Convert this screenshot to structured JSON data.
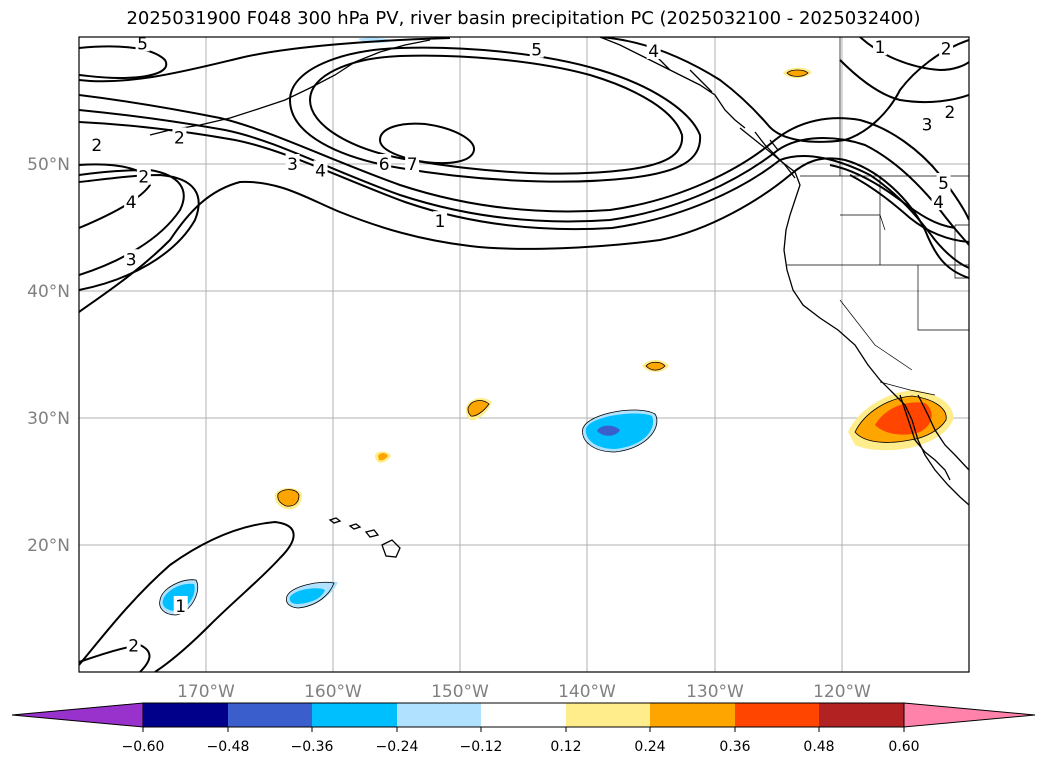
{
  "title": "2025031900 F048 300 hPa PV, river basin precipitation PC (2025032100 - 2025032400)",
  "map": {
    "lon_range": [
      -180,
      -110
    ],
    "lat_range": [
      10,
      60
    ],
    "lon_ticks": [
      {
        "lon": -170,
        "label": "170°W"
      },
      {
        "lon": -160,
        "label": "160°W"
      },
      {
        "lon": -150,
        "label": "150°W"
      },
      {
        "lon": -140,
        "label": "140°W"
      },
      {
        "lon": -130,
        "label": "130°W"
      },
      {
        "lon": -120,
        "label": "120°W"
      }
    ],
    "lat_ticks": [
      {
        "lat": 20,
        "label": "20°N"
      },
      {
        "lat": 30,
        "label": "30°N"
      },
      {
        "lat": 40,
        "label": "40°N"
      },
      {
        "lat": 50,
        "label": "50°N"
      }
    ],
    "grid": true,
    "contour_labels": [
      {
        "text": "5",
        "lon": -175,
        "lat": 59.5
      },
      {
        "text": "5",
        "lon": -144,
        "lat": 59.0
      },
      {
        "text": "4",
        "lon": -134.8,
        "lat": 58.9
      },
      {
        "text": "1",
        "lon": -117,
        "lat": 59.2
      },
      {
        "text": "2",
        "lon": -111.8,
        "lat": 59.1
      },
      {
        "text": "2",
        "lon": -178.6,
        "lat": 51.5
      },
      {
        "text": "2",
        "lon": -172.1,
        "lat": 52.1
      },
      {
        "text": "2",
        "lon": -174.9,
        "lat": 49.0
      },
      {
        "text": "4",
        "lon": -175.9,
        "lat": 47.0
      },
      {
        "text": "3",
        "lon": -175.9,
        "lat": 42.5
      },
      {
        "text": "3",
        "lon": -163.2,
        "lat": 50.0
      },
      {
        "text": "4",
        "lon": -161.0,
        "lat": 49.5
      },
      {
        "text": "6",
        "lon": -156.0,
        "lat": 50.0
      },
      {
        "text": "7",
        "lon": -153.8,
        "lat": 50.0
      },
      {
        "text": "1",
        "lon": -151.6,
        "lat": 45.5
      },
      {
        "text": "3",
        "lon": -113.3,
        "lat": 53.1
      },
      {
        "text": "2",
        "lon": -111.5,
        "lat": 54.1
      },
      {
        "text": "5",
        "lon": -112.0,
        "lat": 48.5
      },
      {
        "text": "4",
        "lon": -112.4,
        "lat": 47.0
      },
      {
        "text": "1",
        "lon": -172.0,
        "lat": 15.2
      },
      {
        "text": "2",
        "lon": -175.7,
        "lat": 12.1
      }
    ]
  },
  "colorbar": {
    "colors": [
      "#9932cc",
      "#00008b",
      "#3a5fcd",
      "#00bfff",
      "#b0e2ff",
      "#ffffff",
      "#ffec8b",
      "#ffa500",
      "#ff4500",
      "#b22222",
      "#ff82ab"
    ],
    "tick_labels": [
      "−0.60",
      "−0.48",
      "−0.36",
      "−0.24",
      "−0.12",
      "0.12",
      "0.24",
      "0.36",
      "0.48",
      "0.60"
    ]
  }
}
